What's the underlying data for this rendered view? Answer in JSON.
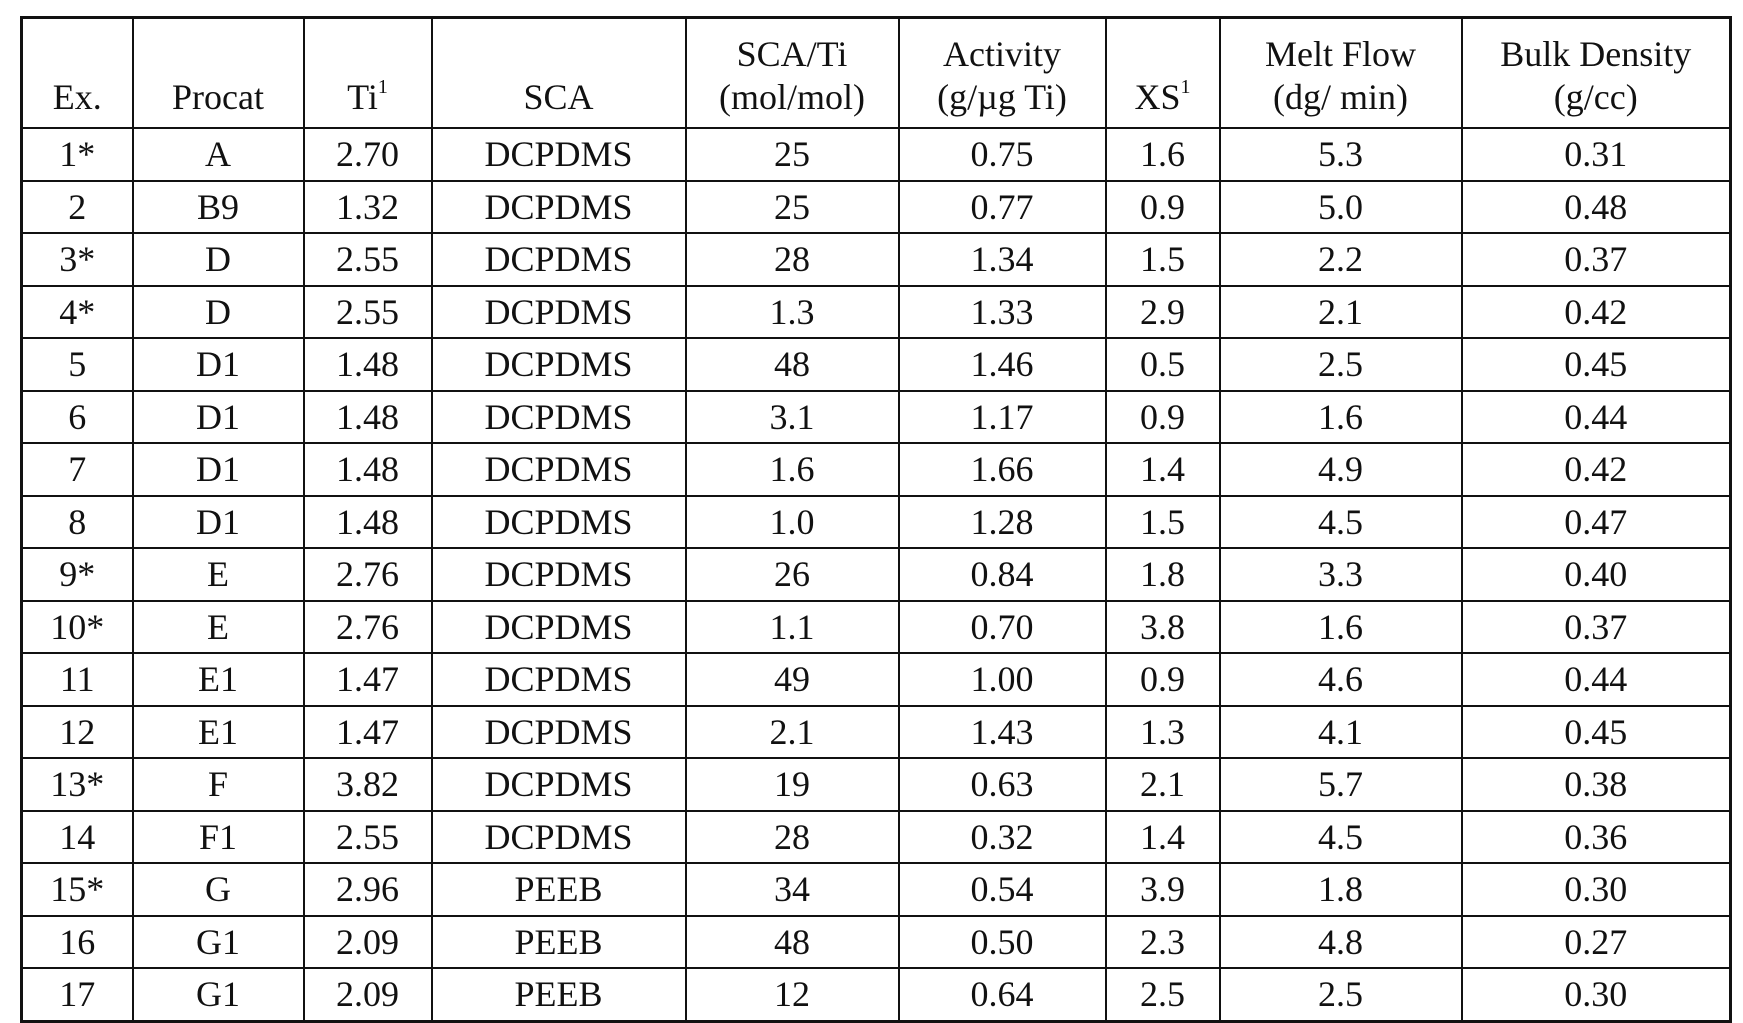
{
  "table": {
    "header": [
      {
        "lines": [
          "Ex."
        ]
      },
      {
        "lines": [
          "Procat"
        ]
      },
      {
        "lines": [
          "Ti"
        ],
        "sup": "1"
      },
      {
        "lines": [
          "SCA"
        ]
      },
      {
        "lines": [
          "SCA/Ti",
          "(mol/mol)"
        ]
      },
      {
        "lines": [
          "Activity",
          "(g/µg Ti)"
        ]
      },
      {
        "lines": [
          "XS"
        ],
        "sup": "1"
      },
      {
        "lines": [
          "Melt Flow",
          "(dg/ min)"
        ]
      },
      {
        "lines": [
          "Bulk Density",
          "(g/cc)"
        ]
      }
    ],
    "rows": [
      [
        "1*",
        "A",
        "2.70",
        "DCPDMS",
        "25",
        "0.75",
        "1.6",
        "5.3",
        "0.31"
      ],
      [
        "2",
        "B9",
        "1.32",
        "DCPDMS",
        "25",
        "0.77",
        "0.9",
        "5.0",
        "0.48"
      ],
      [
        "3*",
        "D",
        "2.55",
        "DCPDMS",
        "28",
        "1.34",
        "1.5",
        "2.2",
        "0.37"
      ],
      [
        "4*",
        "D",
        "2.55",
        "DCPDMS",
        "1.3",
        "1.33",
        "2.9",
        "2.1",
        "0.42"
      ],
      [
        "5",
        "D1",
        "1.48",
        "DCPDMS",
        "48",
        "1.46",
        "0.5",
        "2.5",
        "0.45"
      ],
      [
        "6",
        "D1",
        "1.48",
        "DCPDMS",
        "3.1",
        "1.17",
        "0.9",
        "1.6",
        "0.44"
      ],
      [
        "7",
        "D1",
        "1.48",
        "DCPDMS",
        "1.6",
        "1.66",
        "1.4",
        "4.9",
        "0.42"
      ],
      [
        "8",
        "D1",
        "1.48",
        "DCPDMS",
        "1.0",
        "1.28",
        "1.5",
        "4.5",
        "0.47"
      ],
      [
        "9*",
        "E",
        "2.76",
        "DCPDMS",
        "26",
        "0.84",
        "1.8",
        "3.3",
        "0.40"
      ],
      [
        "10*",
        "E",
        "2.76",
        "DCPDMS",
        "1.1",
        "0.70",
        "3.8",
        "1.6",
        "0.37"
      ],
      [
        "11",
        "E1",
        "1.47",
        "DCPDMS",
        "49",
        "1.00",
        "0.9",
        "4.6",
        "0.44"
      ],
      [
        "12",
        "E1",
        "1.47",
        "DCPDMS",
        "2.1",
        "1.43",
        "1.3",
        "4.1",
        "0.45"
      ],
      [
        "13*",
        "F",
        "3.82",
        "DCPDMS",
        "19",
        "0.63",
        "2.1",
        "5.7",
        "0.38"
      ],
      [
        "14",
        "F1",
        "2.55",
        "DCPDMS",
        "28",
        "0.32",
        "1.4",
        "4.5",
        "0.36"
      ],
      [
        "15*",
        "G",
        "2.96",
        "PEEB",
        "34",
        "0.54",
        "3.9",
        "1.8",
        "0.30"
      ],
      [
        "16",
        "G1",
        "2.09",
        "PEEB",
        "48",
        "0.50",
        "2.3",
        "4.8",
        "0.27"
      ],
      [
        "17",
        "G1",
        "2.09",
        "PEEB",
        "12",
        "0.64",
        "2.5",
        "2.5",
        "0.30"
      ]
    ]
  }
}
